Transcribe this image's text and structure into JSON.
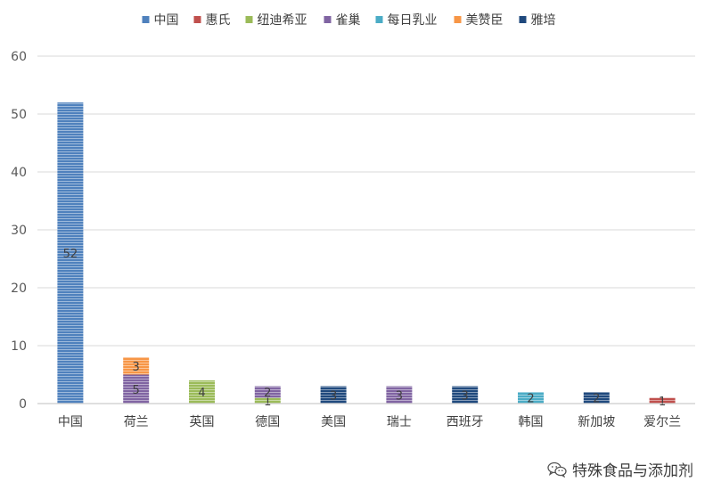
{
  "chart_data": {
    "type": "bar",
    "stacked": true,
    "categories": [
      "中国",
      "荷兰",
      "英国",
      "德国",
      "美国",
      "瑞士",
      "西班牙",
      "韩国",
      "新加坡",
      "爱尔兰"
    ],
    "series": [
      {
        "name": "中国",
        "color": "#4f81bd",
        "values": [
          52,
          0,
          0,
          0,
          0,
          0,
          0,
          0,
          0,
          0
        ]
      },
      {
        "name": "惠氏",
        "color": "#c0504d",
        "values": [
          0,
          0,
          0,
          0,
          0,
          0,
          0,
          0,
          0,
          1
        ]
      },
      {
        "name": "纽迪希亚",
        "color": "#9bbb59",
        "values": [
          0,
          0,
          4,
          1,
          0,
          0,
          0,
          0,
          0,
          0
        ]
      },
      {
        "name": "雀巢",
        "color": "#8064a2",
        "values": [
          0,
          5,
          0,
          2,
          0,
          3,
          0,
          0,
          0,
          0
        ]
      },
      {
        "name": "每日乳业",
        "color": "#4bacc6",
        "values": [
          0,
          0,
          0,
          0,
          0,
          0,
          0,
          2,
          0,
          0
        ]
      },
      {
        "name": "美赞臣",
        "color": "#f79646",
        "values": [
          0,
          3,
          0,
          0,
          0,
          0,
          0,
          0,
          0,
          0
        ]
      },
      {
        "name": "雅培",
        "color": "#1f497d",
        "values": [
          0,
          0,
          0,
          0,
          3,
          0,
          3,
          0,
          2,
          0
        ]
      }
    ],
    "ylim": [
      0,
      60
    ],
    "yticks": [
      0,
      10,
      20,
      30,
      40,
      50,
      60
    ],
    "grid": true,
    "legend": "top",
    "data_labels": true
  },
  "watermark": {
    "text": "特殊食品与添加剂",
    "icon": "wechat-icon"
  }
}
